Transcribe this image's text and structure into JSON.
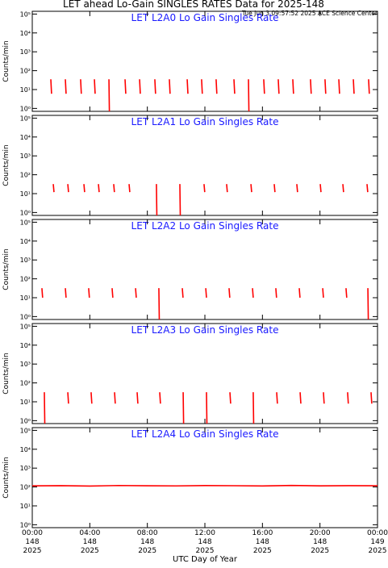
{
  "title": "LET ahead Lo-Gain SINGLES RATES Data for 2025-148",
  "subtitle": "Tue Jun  3 09:57:52 2025 ACE Science Center",
  "xlabel": "UTC Day of Year",
  "chart_data": [
    {
      "type": "line",
      "title": "LET  L2A0  Lo Gain Singles Rate",
      "ylabel": "Counts/min",
      "color": "#ff0000",
      "log_y": true,
      "xlim": [
        0,
        24
      ],
      "xticks": [
        0,
        4,
        8,
        12,
        16,
        20,
        24
      ],
      "ylim": [
        0.7,
        140000
      ],
      "yticks": [
        {
          "value": 1,
          "label": "10⁰"
        },
        {
          "value": 10,
          "label": "10¹"
        },
        {
          "value": 100,
          "label": "10²"
        },
        {
          "value": 1000,
          "label": "10³"
        },
        {
          "value": 10000,
          "label": "10⁴"
        },
        {
          "value": 100000,
          "label": "10⁵"
        }
      ],
      "x": [
        1.29,
        1.34,
        1.35,
        2.3,
        2.35,
        2.36,
        3.36,
        3.41,
        3.42,
        4.32,
        4.37,
        4.38,
        5.33,
        5.36,
        5.37,
        6.45,
        6.5,
        6.51,
        7.46,
        7.51,
        7.52,
        8.52,
        8.57,
        8.58,
        9.53,
        9.58,
        9.59,
        10.77,
        10.82,
        10.83,
        11.77,
        11.82,
        11.83,
        12.78,
        12.83,
        12.84,
        14.02,
        14.07,
        14.08,
        15.03,
        15.06,
        15.07,
        16.09,
        16.14,
        16.15,
        17.1,
        17.15,
        17.16,
        18.11,
        18.16,
        18.17,
        19.34,
        19.39,
        19.4,
        20.35,
        20.4,
        20.41,
        21.31,
        21.36,
        21.37,
        22.32,
        22.37,
        22.38,
        23.38,
        23.43,
        23.44
      ],
      "values": [
        35,
        6,
        null,
        35,
        6,
        null,
        35,
        6,
        null,
        35,
        6,
        null,
        35,
        0.7,
        null,
        35,
        6,
        null,
        35,
        6,
        null,
        35,
        6,
        null,
        35,
        6,
        null,
        35,
        6,
        null,
        35,
        6,
        null,
        35,
        6,
        null,
        35,
        6,
        null,
        35,
        0.7,
        null,
        35,
        6,
        null,
        35,
        6,
        null,
        35,
        6,
        null,
        35,
        6,
        null,
        35,
        6,
        null,
        35,
        6,
        null,
        35,
        6,
        null,
        35,
        6,
        null
      ]
    },
    {
      "type": "line",
      "title": "LET  L2A1  Lo Gain Singles Rate",
      "ylabel": "Counts/min",
      "color": "#ff0000",
      "log_y": true,
      "xlim": [
        0,
        24
      ],
      "xticks": [
        0,
        4,
        8,
        12,
        16,
        20,
        24
      ],
      "ylim": [
        0.7,
        140000
      ],
      "yticks": [
        {
          "value": 1,
          "label": "10⁰"
        },
        {
          "value": 10,
          "label": "10¹"
        },
        {
          "value": 100,
          "label": "10²"
        },
        {
          "value": 1000,
          "label": "10³"
        },
        {
          "value": 10000,
          "label": "10⁴"
        },
        {
          "value": 100000,
          "label": "10⁵"
        }
      ],
      "x": [
        1.46,
        1.51,
        1.52,
        2.47,
        2.52,
        2.53,
        3.59,
        3.64,
        3.65,
        4.6,
        4.65,
        4.66,
        5.66,
        5.71,
        5.72,
        6.73,
        6.78,
        6.79,
        8.63,
        8.66,
        8.67,
        10.26,
        10.29,
        10.3,
        11.94,
        11.99,
        12.0,
        13.51,
        13.56,
        13.57,
        15.2,
        15.25,
        15.26,
        16.82,
        16.87,
        16.88,
        18.39,
        18.44,
        18.45,
        20.02,
        20.07,
        20.08,
        21.59,
        21.64,
        21.65,
        23.27,
        23.32,
        23.33
      ],
      "values": [
        32,
        12,
        null,
        32,
        12,
        null,
        32,
        12,
        null,
        32,
        12,
        null,
        32,
        12,
        null,
        32,
        12,
        null,
        32,
        0.7,
        null,
        32,
        0.7,
        null,
        32,
        12,
        null,
        32,
        12,
        null,
        32,
        12,
        null,
        32,
        12,
        null,
        32,
        12,
        null,
        32,
        12,
        null,
        32,
        12,
        null,
        32,
        12,
        null
      ]
    },
    {
      "type": "line",
      "title": "LET  L2A2  Lo Gain Singles Rate",
      "ylabel": "Counts/min",
      "color": "#ff0000",
      "log_y": true,
      "xlim": [
        0,
        24
      ],
      "xticks": [
        0,
        4,
        8,
        12,
        16,
        20,
        24
      ],
      "ylim": [
        0.7,
        140000
      ],
      "yticks": [
        {
          "value": 1,
          "label": "10⁰"
        },
        {
          "value": 10,
          "label": "10¹"
        },
        {
          "value": 100,
          "label": "10²"
        },
        {
          "value": 1000,
          "label": "10³"
        },
        {
          "value": 10000,
          "label": "10⁴"
        },
        {
          "value": 100000,
          "label": "10⁵"
        }
      ],
      "x": [
        0.67,
        0.72,
        0.73,
        2.3,
        2.35,
        2.36,
        3.92,
        3.97,
        3.98,
        5.55,
        5.6,
        5.61,
        7.18,
        7.23,
        7.24,
        8.8,
        8.83,
        8.84,
        10.43,
        10.48,
        10.49,
        12.06,
        12.11,
        12.12,
        13.68,
        13.73,
        13.74,
        15.31,
        15.36,
        15.37,
        16.93,
        16.98,
        16.99,
        18.56,
        18.61,
        18.62,
        20.19,
        20.24,
        20.25,
        21.81,
        21.86,
        21.87,
        23.33,
        23.36,
        23.37
      ],
      "values": [
        32,
        10,
        null,
        32,
        10,
        null,
        32,
        10,
        null,
        32,
        10,
        null,
        32,
        10,
        null,
        32,
        0.7,
        null,
        32,
        10,
        null,
        32,
        10,
        null,
        32,
        10,
        null,
        32,
        10,
        null,
        32,
        10,
        null,
        32,
        10,
        null,
        32,
        10,
        null,
        32,
        10,
        null,
        32,
        0.7,
        null
      ]
    },
    {
      "type": "line",
      "title": "LET  L2A3  Lo Gain Singles Rate",
      "ylabel": "Counts/min",
      "color": "#ff0000",
      "log_y": true,
      "xlim": [
        0,
        24
      ],
      "xticks": [
        0,
        4,
        8,
        12,
        16,
        20,
        24
      ],
      "ylim": [
        0.7,
        140000
      ],
      "yticks": [
        {
          "value": 1,
          "label": "10⁰"
        },
        {
          "value": 10,
          "label": "10¹"
        },
        {
          "value": 100,
          "label": "10²"
        },
        {
          "value": 1000,
          "label": "10³"
        },
        {
          "value": 10000,
          "label": "10⁴"
        },
        {
          "value": 100000,
          "label": "10⁵"
        }
      ],
      "x": [
        0.84,
        0.87,
        0.88,
        2.47,
        2.52,
        2.53,
        4.09,
        4.14,
        4.15,
        5.72,
        5.77,
        5.78,
        7.29,
        7.34,
        7.35,
        8.86,
        8.91,
        8.92,
        10.49,
        10.52,
        10.53,
        12.11,
        12.14,
        12.15,
        13.74,
        13.79,
        13.8,
        15.36,
        15.39,
        15.4,
        16.99,
        17.04,
        17.05,
        18.62,
        18.67,
        18.68,
        20.24,
        20.29,
        20.3,
        21.92,
        21.97,
        21.98,
        23.55,
        23.6,
        23.61
      ],
      "values": [
        32,
        0.7,
        null,
        32,
        8,
        null,
        32,
        8,
        null,
        32,
        8,
        null,
        32,
        8,
        null,
        32,
        8,
        null,
        32,
        0.7,
        null,
        32,
        0.7,
        null,
        32,
        8,
        null,
        32,
        0.7,
        null,
        32,
        8,
        null,
        32,
        8,
        null,
        32,
        8,
        null,
        32,
        8,
        null,
        32,
        8,
        null
      ]
    },
    {
      "type": "line",
      "title": "LET  L2A4  Lo Gain Singles Rate",
      "ylabel": "Counts/min",
      "color": "#ff0000",
      "log_y": true,
      "xlim": [
        0,
        24
      ],
      "xticks": [
        {
          "value": 0,
          "label": "00:00\n148\n2025"
        },
        {
          "value": 4,
          "label": "04:00\n148\n2025"
        },
        {
          "value": 8,
          "label": "08:00\n148\n2025"
        },
        {
          "value": 12,
          "label": "12:00\n148\n2025"
        },
        {
          "value": 16,
          "label": "16:00\n148\n2025"
        },
        {
          "value": 20,
          "label": "20:00\n148\n2025"
        },
        {
          "value": 24,
          "label": "00:00\n149\n2025"
        }
      ],
      "ylim": [
        0.7,
        140000
      ],
      "yticks": [
        {
          "value": 1,
          "label": "10⁰"
        },
        {
          "value": 10,
          "label": "10¹"
        },
        {
          "value": 100,
          "label": "10²"
        },
        {
          "value": 1000,
          "label": "10³"
        },
        {
          "value": 10000,
          "label": "10⁴"
        },
        {
          "value": 100000,
          "label": "10⁵"
        }
      ],
      "x": [
        0,
        2,
        4,
        6,
        8,
        10,
        12,
        14,
        16,
        18,
        20,
        22,
        24
      ],
      "values": [
        115,
        118,
        112,
        120,
        116,
        114,
        119,
        117,
        113,
        121,
        115,
        118,
        116
      ]
    }
  ]
}
